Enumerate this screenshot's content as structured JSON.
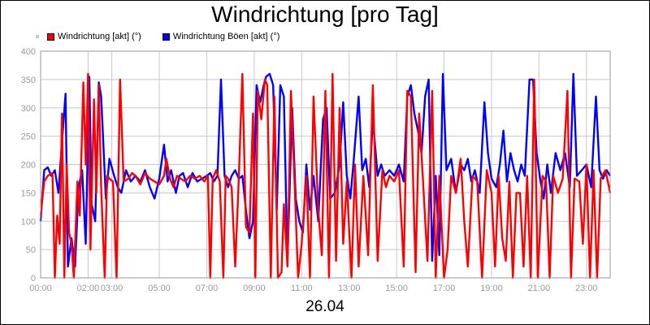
{
  "chart_data": {
    "type": "line",
    "title": "Windrichtung [pro Tag]",
    "xlabel": "26.04",
    "ylabel": "",
    "ylim": [
      0,
      400
    ],
    "yticks": [
      0,
      50,
      100,
      150,
      200,
      250,
      300,
      350,
      400
    ],
    "xlim": [
      0,
      24
    ],
    "xticks": [
      {
        "hour": 0,
        "label": "00:00"
      },
      {
        "hour": 2,
        "label": "02:00"
      },
      {
        "hour": 3,
        "label": "03:00"
      },
      {
        "hour": 5,
        "label": "05:00"
      },
      {
        "hour": 7,
        "label": "07:00"
      },
      {
        "hour": 9,
        "label": "09:00"
      },
      {
        "hour": 11,
        "label": "11:00"
      },
      {
        "hour": 13,
        "label": "13:00"
      },
      {
        "hour": 15,
        "label": "15:00"
      },
      {
        "hour": 17,
        "label": "17:00"
      },
      {
        "hour": 19,
        "label": "19:00"
      },
      {
        "hour": 21,
        "label": "21:00"
      },
      {
        "hour": 23,
        "label": "23:00"
      }
    ],
    "grid": true,
    "legend_position": "top-left",
    "series": [
      {
        "name": "Windrichtung [akt] (°)",
        "color": "#ff0000",
        "points": [
          [
            0.0,
            110
          ],
          [
            0.15,
            170
          ],
          [
            0.3,
            180
          ],
          [
            0.5,
            185
          ],
          [
            0.6,
            0
          ],
          [
            0.7,
            110
          ],
          [
            0.8,
            60
          ],
          [
            0.9,
            290
          ],
          [
            1.0,
            0
          ],
          [
            1.1,
            200
          ],
          [
            1.2,
            80
          ],
          [
            1.3,
            60
          ],
          [
            1.4,
            0
          ],
          [
            1.55,
            170
          ],
          [
            1.65,
            110
          ],
          [
            1.8,
            345
          ],
          [
            1.9,
            200
          ],
          [
            2.0,
            360
          ],
          [
            2.1,
            50
          ],
          [
            2.25,
            315
          ],
          [
            2.35,
            150
          ],
          [
            2.45,
            340
          ],
          [
            2.55,
            160
          ],
          [
            2.7,
            0
          ],
          [
            2.8,
            180
          ],
          [
            2.9,
            175
          ],
          [
            3.05,
            170
          ],
          [
            3.2,
            0
          ],
          [
            3.35,
            350
          ],
          [
            3.5,
            170
          ],
          [
            3.7,
            175
          ],
          [
            3.85,
            185
          ],
          [
            4.0,
            180
          ],
          [
            4.2,
            165
          ],
          [
            4.4,
            185
          ],
          [
            4.6,
            175
          ],
          [
            4.8,
            170
          ],
          [
            5.0,
            165
          ],
          [
            5.2,
            180
          ],
          [
            5.3,
            210
          ],
          [
            5.45,
            175
          ],
          [
            5.6,
            160
          ],
          [
            5.75,
            180
          ],
          [
            5.9,
            175
          ],
          [
            6.1,
            170
          ],
          [
            6.3,
            180
          ],
          [
            6.5,
            175
          ],
          [
            6.7,
            180
          ],
          [
            6.9,
            170
          ],
          [
            7.05,
            180
          ],
          [
            7.15,
            0
          ],
          [
            7.25,
            175
          ],
          [
            7.4,
            190
          ],
          [
            7.55,
            170
          ],
          [
            7.7,
            0
          ],
          [
            7.8,
            180
          ],
          [
            7.9,
            175
          ],
          [
            8.05,
            160
          ],
          [
            8.2,
            20
          ],
          [
            8.35,
            175
          ],
          [
            8.5,
            360
          ],
          [
            8.65,
            90
          ],
          [
            8.8,
            80
          ],
          [
            8.95,
            290
          ],
          [
            9.05,
            0
          ],
          [
            9.15,
            330
          ],
          [
            9.3,
            280
          ],
          [
            9.45,
            350
          ],
          [
            9.55,
            340
          ],
          [
            9.7,
            0
          ],
          [
            9.85,
            320
          ],
          [
            10.0,
            0
          ],
          [
            10.15,
            10
          ],
          [
            10.25,
            130
          ],
          [
            10.4,
            20
          ],
          [
            10.55,
            330
          ],
          [
            10.7,
            170
          ],
          [
            10.85,
            0
          ],
          [
            11.0,
            60
          ],
          [
            11.2,
            180
          ],
          [
            11.35,
            0
          ],
          [
            11.5,
            320
          ],
          [
            11.7,
            120
          ],
          [
            11.85,
            40
          ],
          [
            12.0,
            330
          ],
          [
            12.15,
            0
          ],
          [
            12.3,
            360
          ],
          [
            12.45,
            30
          ],
          [
            12.6,
            300
          ],
          [
            12.75,
            60
          ],
          [
            12.9,
            170
          ],
          [
            13.1,
            0
          ],
          [
            13.25,
            200
          ],
          [
            13.4,
            20
          ],
          [
            13.6,
            180
          ],
          [
            13.8,
            40
          ],
          [
            14.0,
            340
          ],
          [
            14.2,
            30
          ],
          [
            14.4,
            190
          ],
          [
            14.55,
            160
          ],
          [
            14.7,
            180
          ],
          [
            14.9,
            170
          ],
          [
            15.1,
            190
          ],
          [
            15.3,
            20
          ],
          [
            15.45,
            330
          ],
          [
            15.6,
            320
          ],
          [
            15.8,
            10
          ],
          [
            15.95,
            290
          ],
          [
            16.1,
            180
          ],
          [
            16.3,
            30
          ],
          [
            16.5,
            330
          ],
          [
            16.65,
            0
          ],
          [
            16.8,
            180
          ],
          [
            17.0,
            0
          ],
          [
            17.15,
            50
          ],
          [
            17.3,
            180
          ],
          [
            17.5,
            150
          ],
          [
            17.7,
            210
          ],
          [
            17.85,
            100
          ],
          [
            18.0,
            20
          ],
          [
            18.2,
            180
          ],
          [
            18.4,
            170
          ],
          [
            18.6,
            0
          ],
          [
            18.8,
            190
          ],
          [
            19.0,
            150
          ],
          [
            19.15,
            20
          ],
          [
            19.3,
            180
          ],
          [
            19.45,
            70
          ],
          [
            19.6,
            30
          ],
          [
            19.75,
            170
          ],
          [
            19.9,
            0
          ],
          [
            20.05,
            150
          ],
          [
            20.2,
            150
          ],
          [
            20.35,
            20
          ],
          [
            20.5,
            180
          ],
          [
            20.65,
            0
          ],
          [
            20.8,
            350
          ],
          [
            20.95,
            0
          ],
          [
            21.15,
            180
          ],
          [
            21.3,
            170
          ],
          [
            21.45,
            0
          ],
          [
            21.6,
            180
          ],
          [
            21.8,
            150
          ],
          [
            22.0,
            175
          ],
          [
            22.2,
            330
          ],
          [
            22.35,
            0
          ],
          [
            22.5,
            175
          ],
          [
            22.7,
            170
          ],
          [
            22.85,
            60
          ],
          [
            23.0,
            200
          ],
          [
            23.15,
            0
          ],
          [
            23.3,
            190
          ],
          [
            23.45,
            0
          ],
          [
            23.6,
            175
          ],
          [
            23.8,
            190
          ],
          [
            24.0,
            150
          ]
        ]
      },
      {
        "name": "Windrichtung Böen [akt] (°)",
        "color": "#0000ff",
        "points": [
          [
            0.0,
            100
          ],
          [
            0.15,
            190
          ],
          [
            0.3,
            195
          ],
          [
            0.45,
            180
          ],
          [
            0.6,
            190
          ],
          [
            0.75,
            150
          ],
          [
            0.9,
            240
          ],
          [
            1.05,
            325
          ],
          [
            1.15,
            20
          ],
          [
            1.3,
            70
          ],
          [
            1.45,
            20
          ],
          [
            1.6,
            160
          ],
          [
            1.75,
            190
          ],
          [
            1.9,
            60
          ],
          [
            2.05,
            355
          ],
          [
            2.15,
            130
          ],
          [
            2.3,
            100
          ],
          [
            2.45,
            345
          ],
          [
            2.55,
            320
          ],
          [
            2.75,
            140
          ],
          [
            2.9,
            210
          ],
          [
            3.1,
            180
          ],
          [
            3.25,
            160
          ],
          [
            3.4,
            150
          ],
          [
            3.6,
            190
          ],
          [
            3.8,
            170
          ],
          [
            4.0,
            180
          ],
          [
            4.2,
            170
          ],
          [
            4.4,
            190
          ],
          [
            4.6,
            160
          ],
          [
            4.8,
            140
          ],
          [
            5.0,
            175
          ],
          [
            5.2,
            235
          ],
          [
            5.35,
            170
          ],
          [
            5.5,
            190
          ],
          [
            5.7,
            150
          ],
          [
            5.85,
            180
          ],
          [
            6.0,
            185
          ],
          [
            6.2,
            160
          ],
          [
            6.4,
            185
          ],
          [
            6.6,
            170
          ],
          [
            6.8,
            175
          ],
          [
            7.0,
            180
          ],
          [
            7.15,
            185
          ],
          [
            7.3,
            170
          ],
          [
            7.45,
            180
          ],
          [
            7.6,
            350
          ],
          [
            7.75,
            180
          ],
          [
            7.9,
            160
          ],
          [
            8.05,
            180
          ],
          [
            8.2,
            190
          ],
          [
            8.35,
            175
          ],
          [
            8.5,
            180
          ],
          [
            8.65,
            120
          ],
          [
            8.8,
            70
          ],
          [
            8.95,
            100
          ],
          [
            9.1,
            340
          ],
          [
            9.25,
            310
          ],
          [
            9.4,
            340
          ],
          [
            9.5,
            355
          ],
          [
            9.65,
            360
          ],
          [
            9.8,
            340
          ],
          [
            9.95,
            120
          ],
          [
            10.1,
            340
          ],
          [
            10.25,
            320
          ],
          [
            10.4,
            30
          ],
          [
            10.6,
            300
          ],
          [
            10.75,
            140
          ],
          [
            10.9,
            100
          ],
          [
            11.05,
            80
          ],
          [
            11.2,
            200
          ],
          [
            11.35,
            120
          ],
          [
            11.5,
            180
          ],
          [
            11.7,
            100
          ],
          [
            11.9,
            280
          ],
          [
            12.05,
            300
          ],
          [
            12.2,
            140
          ],
          [
            12.4,
            150
          ],
          [
            12.6,
            200
          ],
          [
            12.75,
            310
          ],
          [
            12.9,
            180
          ],
          [
            13.05,
            140
          ],
          [
            13.2,
            210
          ],
          [
            13.4,
            320
          ],
          [
            13.55,
            190
          ],
          [
            13.7,
            210
          ],
          [
            13.85,
            160
          ],
          [
            14.0,
            280
          ],
          [
            14.2,
            180
          ],
          [
            14.35,
            200
          ],
          [
            14.5,
            180
          ],
          [
            14.7,
            190
          ],
          [
            14.9,
            180
          ],
          [
            15.1,
            200
          ],
          [
            15.3,
            170
          ],
          [
            15.45,
            320
          ],
          [
            15.6,
            340
          ],
          [
            15.75,
            290
          ],
          [
            15.9,
            260
          ],
          [
            16.05,
            220
          ],
          [
            16.2,
            320
          ],
          [
            16.35,
            350
          ],
          [
            16.5,
            30
          ],
          [
            16.65,
            180
          ],
          [
            16.8,
            40
          ],
          [
            16.95,
            360
          ],
          [
            17.1,
            190
          ],
          [
            17.3,
            210
          ],
          [
            17.5,
            150
          ],
          [
            17.7,
            200
          ],
          [
            17.85,
            190
          ],
          [
            18.0,
            210
          ],
          [
            18.15,
            170
          ],
          [
            18.3,
            190
          ],
          [
            18.5,
            150
          ],
          [
            18.7,
            310
          ],
          [
            18.85,
            220
          ],
          [
            19.0,
            175
          ],
          [
            19.2,
            160
          ],
          [
            19.35,
            200
          ],
          [
            19.5,
            260
          ],
          [
            19.65,
            170
          ],
          [
            19.8,
            220
          ],
          [
            19.95,
            190
          ],
          [
            20.1,
            170
          ],
          [
            20.25,
            200
          ],
          [
            20.4,
            180
          ],
          [
            20.6,
            350
          ],
          [
            20.75,
            350
          ],
          [
            20.9,
            220
          ],
          [
            21.05,
            175
          ],
          [
            21.2,
            140
          ],
          [
            21.35,
            200
          ],
          [
            21.5,
            150
          ],
          [
            21.7,
            220
          ],
          [
            21.9,
            190
          ],
          [
            22.1,
            220
          ],
          [
            22.3,
            160
          ],
          [
            22.45,
            360
          ],
          [
            22.6,
            180
          ],
          [
            22.8,
            190
          ],
          [
            23.0,
            200
          ],
          [
            23.2,
            160
          ],
          [
            23.4,
            320
          ],
          [
            23.55,
            190
          ],
          [
            23.7,
            175
          ],
          [
            23.85,
            190
          ],
          [
            24.0,
            180
          ]
        ]
      }
    ]
  }
}
